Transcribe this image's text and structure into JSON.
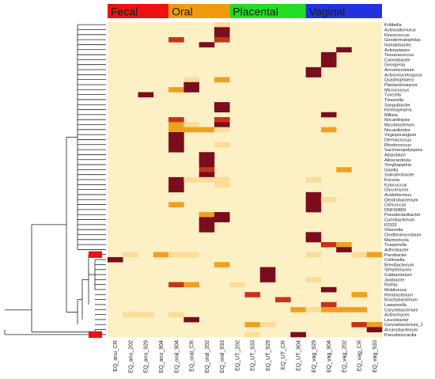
{
  "chart_data": {
    "type": "heatmap",
    "groups": [
      {
        "label": "Fecal",
        "color": "#ee1111"
      },
      {
        "label": "Oral",
        "color": "#f29a0f"
      },
      {
        "label": "Placental",
        "color": "#22dd22"
      },
      {
        "label": "Vaginal",
        "color": "#2233dd"
      }
    ],
    "columns": [
      "EQ_anu_CR",
      "EQ_anu_202",
      "EQ_anu_929",
      "EQ_anu_904",
      "EQ_oral_904",
      "EQ_oral_CR",
      "EQ_oral_202",
      "EQ_oral_933",
      "EQ_UT_202",
      "EQ_UT_933",
      "EQ_UT_929",
      "EQ_UT_CR",
      "EQ_UT_904",
      "EQ_vag_929",
      "EQ_vag_904",
      "EQ_vag_202",
      "EQ_vag_CR",
      "EQ_vag_933"
    ],
    "column_groups": [
      0,
      0,
      0,
      0,
      1,
      1,
      1,
      1,
      2,
      2,
      2,
      2,
      2,
      3,
      3,
      3,
      3,
      3
    ],
    "rows": [
      "Kribbella",
      "Actinoallomurus",
      "Kineococcus",
      "Geodermatophilus",
      "Ilumatobacter",
      "Actinoplanes",
      "Tessaracoccus",
      "Conexibacter",
      "Georgenia",
      "Aeromicrobium",
      "Actinomycetospora",
      "Quadrisphaera",
      "Plantactinospora",
      "Micrococcus",
      "Turicella",
      "Timonella",
      "Sanguibacter",
      "Kineosphaera",
      "Millisia",
      "Nocardiopsis",
      "Mycobacterium",
      "Nocardioides",
      "Virgisporangium",
      "Dermacoccus",
      "Rhodococcus",
      "Saccharopolyspora",
      "Atopobium",
      "Alloscardovia",
      "Yonghaparkia",
      "Gaiella",
      "Solirubrobacter",
      "Kocuria",
      "Kytococcus",
      "Glycomyces",
      "Acidothermus",
      "Denitrobacterium",
      "Citricoccus",
      "DNF00809",
      "Pseudoclavibacter",
      "Curtobacterium",
      "F0332",
      "Olsenella",
      "Ornithinimicrobium",
      "Marmoricola",
      "Trueperella",
      "Arthrobacter",
      "Parvibacter",
      "Collinsella",
      "Brevibacterium",
      "Streptomyces",
      "Cubbacterium",
      "Janibacter",
      "Rothia",
      "Mobiluncus",
      "Renibacterium",
      "Brachybacterium",
      "Lawsonella",
      "Corynebacterium",
      "Actinomyces",
      "Leucobacter",
      "Corynebacterium_1",
      "Arcanobacterium",
      "Pseudonocardia"
    ],
    "cells": [
      [
        0,
        0,
        0,
        0,
        0,
        0,
        0,
        1,
        0,
        0,
        0,
        0,
        0,
        0,
        0,
        0,
        0,
        0
      ],
      [
        0,
        0,
        0,
        0,
        0,
        0,
        0,
        4,
        0,
        0,
        0,
        0,
        0,
        0,
        0,
        0,
        0,
        0
      ],
      [
        0,
        0,
        0,
        0,
        0,
        0,
        0,
        4,
        0,
        0,
        0,
        0,
        0,
        0,
        0,
        0,
        0,
        0
      ],
      [
        0,
        0,
        0,
        0,
        3,
        0,
        0,
        3,
        0,
        0,
        0,
        0,
        0,
        0,
        0,
        0,
        0,
        0
      ],
      [
        0,
        0,
        0,
        0,
        0,
        0,
        4,
        0,
        0,
        0,
        0,
        0,
        0,
        0,
        0,
        0,
        0,
        0
      ],
      [
        0,
        0,
        0,
        0,
        0,
        0,
        0,
        0,
        0,
        0,
        0,
        0,
        0,
        0,
        0,
        4,
        0,
        0
      ],
      [
        0,
        0,
        0,
        0,
        0,
        0,
        0,
        0,
        0,
        0,
        0,
        0,
        0,
        0,
        4,
        0,
        0,
        0
      ],
      [
        0,
        0,
        0,
        0,
        0,
        0,
        0,
        0,
        0,
        0,
        0,
        0,
        0,
        0,
        4,
        0,
        0,
        0
      ],
      [
        0,
        0,
        0,
        0,
        0,
        0,
        0,
        0,
        0,
        0,
        0,
        0,
        0,
        0,
        4,
        0,
        0,
        0
      ],
      [
        0,
        0,
        0,
        0,
        0,
        0,
        0,
        0,
        0,
        0,
        0,
        0,
        0,
        4,
        0,
        0,
        0,
        0
      ],
      [
        0,
        0,
        0,
        0,
        0,
        0,
        0,
        0,
        0,
        0,
        0,
        0,
        0,
        4,
        0,
        0,
        0,
        0
      ],
      [
        0,
        0,
        0,
        0,
        0,
        1,
        0,
        2,
        0,
        0,
        0,
        0,
        0,
        0,
        0,
        0,
        0,
        0
      ],
      [
        0,
        0,
        0,
        0,
        0,
        4,
        0,
        0,
        0,
        0,
        0,
        0,
        0,
        0,
        0,
        0,
        0,
        0
      ],
      [
        0,
        0,
        0,
        0,
        2,
        4,
        0,
        0,
        0,
        0,
        0,
        0,
        0,
        0,
        0,
        0,
        0,
        0
      ],
      [
        0,
        0,
        4,
        0,
        0,
        0,
        0,
        0,
        0,
        0,
        0,
        0,
        0,
        0,
        0,
        0,
        0,
        0
      ],
      [
        0,
        0,
        0,
        0,
        0,
        0,
        0,
        0,
        0,
        0,
        0,
        0,
        0,
        0,
        0,
        0,
        0,
        0
      ],
      [
        0,
        0,
        0,
        0,
        0,
        0,
        0,
        4,
        0,
        0,
        0,
        0,
        0,
        0,
        0,
        0,
        0,
        0
      ],
      [
        0,
        0,
        0,
        0,
        0,
        0,
        0,
        4,
        0,
        0,
        0,
        0,
        0,
        0,
        0,
        0,
        0,
        0
      ],
      [
        0,
        0,
        0,
        0,
        0,
        0,
        0,
        0,
        0,
        0,
        0,
        0,
        0,
        0,
        4,
        0,
        0,
        0
      ],
      [
        0,
        0,
        0,
        0,
        3,
        0,
        0,
        3,
        0,
        0,
        0,
        0,
        0,
        0,
        0,
        0,
        0,
        0
      ],
      [
        0,
        0,
        0,
        0,
        2,
        1,
        0,
        4,
        0,
        0,
        0,
        0,
        0,
        0,
        0,
        0,
        0,
        0
      ],
      [
        0,
        0,
        0,
        0,
        2,
        2,
        2,
        1,
        0,
        0,
        0,
        0,
        0,
        0,
        2,
        0,
        0,
        0
      ],
      [
        0,
        0,
        0,
        0,
        4,
        0,
        0,
        0,
        0,
        0,
        0,
        0,
        0,
        0,
        0,
        0,
        0,
        0
      ],
      [
        0,
        0,
        0,
        0,
        4,
        0,
        0,
        0,
        0,
        0,
        0,
        0,
        0,
        0,
        0,
        0,
        0,
        0
      ],
      [
        0,
        0,
        0,
        0,
        4,
        0,
        0,
        1,
        0,
        0,
        0,
        0,
        0,
        0,
        0,
        0,
        0,
        0
      ],
      [
        0,
        0,
        0,
        0,
        4,
        0,
        0,
        0,
        0,
        0,
        0,
        0,
        0,
        0,
        0,
        0,
        0,
        0
      ],
      [
        0,
        0,
        0,
        0,
        0,
        0,
        4,
        0,
        0,
        0,
        0,
        0,
        0,
        0,
        0,
        0,
        0,
        0
      ],
      [
        0,
        0,
        0,
        0,
        0,
        0,
        4,
        0,
        0,
        0,
        0,
        0,
        0,
        0,
        0,
        0,
        0,
        0
      ],
      [
        0,
        0,
        0,
        0,
        0,
        0,
        4,
        0,
        0,
        0,
        0,
        0,
        0,
        0,
        0,
        0,
        0,
        0
      ],
      [
        0,
        0,
        0,
        0,
        0,
        0,
        3,
        0,
        0,
        0,
        0,
        0,
        0,
        0,
        0,
        2,
        0,
        0
      ],
      [
        0,
        0,
        0,
        0,
        0,
        0,
        4,
        0,
        0,
        0,
        0,
        0,
        0,
        0,
        0,
        0,
        0,
        0
      ],
      [
        0,
        0,
        0,
        0,
        4,
        1,
        1,
        1,
        0,
        0,
        0,
        0,
        0,
        1,
        0,
        0,
        0,
        0
      ],
      [
        0,
        0,
        0,
        0,
        4,
        0,
        0,
        1,
        0,
        0,
        0,
        0,
        0,
        0,
        0,
        0,
        0,
        0
      ],
      [
        0,
        0,
        0,
        0,
        4,
        0,
        0,
        0,
        0,
        0,
        0,
        0,
        0,
        0,
        0,
        0,
        0,
        0
      ],
      [
        0,
        0,
        0,
        0,
        0,
        0,
        0,
        0,
        0,
        0,
        0,
        0,
        0,
        4,
        0,
        0,
        0,
        0
      ],
      [
        0,
        0,
        0,
        0,
        0,
        0,
        0,
        0,
        0,
        0,
        0,
        0,
        0,
        4,
        1,
        0,
        0,
        0
      ],
      [
        0,
        0,
        0,
        0,
        2,
        0,
        0,
        0,
        0,
        0,
        0,
        0,
        0,
        4,
        0,
        0,
        0,
        0
      ],
      [
        0,
        0,
        0,
        0,
        0,
        0,
        0,
        0,
        0,
        0,
        0,
        0,
        0,
        4,
        0,
        0,
        0,
        0
      ],
      [
        0,
        0,
        0,
        0,
        0,
        0,
        2,
        4,
        0,
        0,
        0,
        0,
        0,
        0,
        0,
        0,
        0,
        0
      ],
      [
        0,
        0,
        0,
        0,
        0,
        0,
        4,
        4,
        0,
        0,
        0,
        0,
        0,
        0,
        0,
        0,
        0,
        0
      ],
      [
        0,
        0,
        0,
        0,
        0,
        0,
        4,
        0,
        0,
        0,
        0,
        0,
        0,
        0,
        0,
        0,
        0,
        0
      ],
      [
        0,
        0,
        0,
        0,
        0,
        0,
        4,
        0,
        0,
        0,
        0,
        0,
        0,
        0,
        0,
        0,
        0,
        0
      ],
      [
        0,
        0,
        0,
        0,
        0,
        0,
        0,
        0,
        0,
        0,
        0,
        0,
        0,
        4,
        0,
        0,
        0,
        0
      ],
      [
        0,
        0,
        0,
        0,
        0,
        0,
        0,
        0,
        0,
        0,
        0,
        0,
        0,
        4,
        0,
        0,
        0,
        0
      ],
      [
        0,
        0,
        0,
        0,
        0,
        0,
        0,
        0,
        0,
        0,
        0,
        0,
        0,
        0,
        3,
        2,
        0,
        0
      ],
      [
        0,
        0,
        0,
        0,
        0,
        0,
        0,
        0,
        0,
        0,
        0,
        0,
        0,
        0,
        0,
        4,
        0,
        0
      ],
      [
        0,
        1,
        0,
        2,
        1,
        1,
        0,
        0,
        0,
        0,
        0,
        0,
        0,
        1,
        0,
        0,
        1,
        2
      ],
      [
        4,
        0,
        0,
        0,
        0,
        0,
        0,
        0,
        0,
        0,
        0,
        0,
        0,
        0,
        0,
        0,
        0,
        0
      ],
      [
        0,
        0,
        0,
        0,
        0,
        0,
        0,
        2,
        0,
        0,
        0,
        0,
        0,
        0,
        0,
        0,
        0,
        0
      ],
      [
        0,
        0,
        0,
        0,
        0,
        0,
        0,
        0,
        0,
        0,
        4,
        0,
        0,
        0,
        0,
        0,
        0,
        0
      ],
      [
        0,
        0,
        0,
        0,
        0,
        0,
        0,
        0,
        0,
        0,
        4,
        0,
        0,
        0,
        0,
        0,
        0,
        0
      ],
      [
        0,
        0,
        0,
        0,
        0,
        0,
        0,
        0,
        0,
        0,
        4,
        0,
        0,
        1,
        0,
        0,
        0,
        0
      ],
      [
        0,
        0,
        0,
        0,
        3,
        2,
        0,
        0,
        1,
        0,
        0,
        0,
        0,
        0,
        0,
        0,
        0,
        0
      ],
      [
        0,
        0,
        0,
        0,
        0,
        0,
        0,
        0,
        0,
        0,
        0,
        0,
        0,
        0,
        4,
        0,
        0,
        0
      ],
      [
        0,
        0,
        0,
        0,
        0,
        0,
        0,
        0,
        0,
        3,
        0,
        0,
        0,
        0,
        0,
        0,
        2,
        0
      ],
      [
        0,
        0,
        0,
        0,
        0,
        0,
        0,
        0,
        0,
        0,
        0,
        3,
        0,
        0,
        0,
        0,
        0,
        0
      ],
      [
        0,
        0,
        0,
        0,
        0,
        0,
        0,
        0,
        0,
        0,
        0,
        0,
        0,
        0,
        3,
        0,
        0,
        0
      ],
      [
        0,
        0,
        0,
        0,
        0,
        0,
        0,
        0,
        0,
        0,
        0,
        0,
        2,
        1,
        2,
        2,
        2,
        0
      ],
      [
        0,
        1,
        1,
        0,
        1,
        0,
        0,
        0,
        0,
        0,
        0,
        0,
        0,
        0,
        0,
        0,
        0,
        0
      ],
      [
        0,
        0,
        0,
        0,
        0,
        4,
        0,
        0,
        0,
        0,
        0,
        0,
        0,
        0,
        0,
        0,
        0,
        0
      ],
      [
        0,
        0,
        0,
        0,
        0,
        0,
        0,
        0,
        0,
        2,
        1,
        0,
        0,
        0,
        0,
        0,
        3,
        2
      ],
      [
        0,
        0,
        0,
        0,
        0,
        0,
        0,
        0,
        0,
        0,
        0,
        0,
        0,
        0,
        0,
        0,
        0,
        4
      ],
      [
        0,
        0,
        0,
        0,
        0,
        0,
        0,
        0,
        0,
        1,
        0,
        0,
        4,
        0,
        0,
        0,
        0,
        0
      ]
    ],
    "palette": [
      "#fdf0c4",
      "#fbdc98",
      "#f0a021",
      "#c4331b",
      "#7a0d1e"
    ],
    "highlighted_rows": [
      "Parvibacter",
      "Pseudonocardia"
    ],
    "highlight_color": "#ee1111"
  }
}
